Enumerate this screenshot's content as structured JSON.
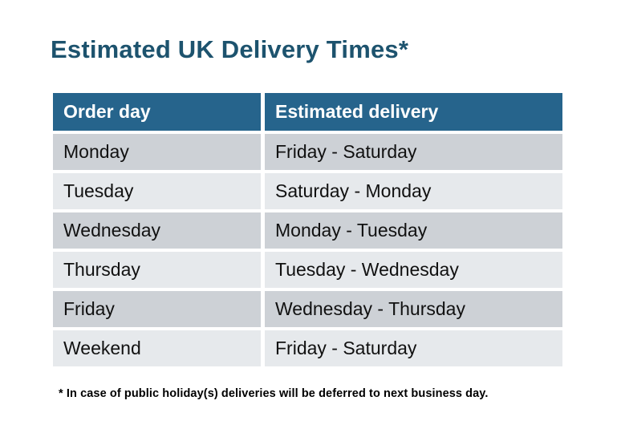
{
  "title": "Estimated UK Delivery Times*",
  "table": {
    "headers": {
      "order_day": "Order day",
      "estimated_delivery": "Estimated delivery"
    },
    "rows": [
      {
        "order_day": "Monday",
        "estimated_delivery": "Friday - Saturday"
      },
      {
        "order_day": "Tuesday",
        "estimated_delivery": "Saturday - Monday"
      },
      {
        "order_day": "Wednesday",
        "estimated_delivery": "Monday - Tuesday"
      },
      {
        "order_day": "Thursday",
        "estimated_delivery": "Tuesday - Wednesday"
      },
      {
        "order_day": "Friday",
        "estimated_delivery": "Wednesday - Thursday"
      },
      {
        "order_day": "Weekend",
        "estimated_delivery": "Friday - Saturday"
      }
    ]
  },
  "footnote": "* In case of public holiday(s) deliveries will be deferred to next business day.",
  "colors": {
    "title_text": "#1d536e",
    "header_bg": "#26648c",
    "header_text": "#ffffff",
    "row_dark": "#cdd1d6",
    "row_light": "#e6e9ec",
    "body_text": "#111111",
    "page_bg": "#ffffff"
  },
  "chart_data": {
    "type": "table",
    "title": "Estimated UK Delivery Times*",
    "columns": [
      "Order day",
      "Estimated delivery"
    ],
    "rows": [
      [
        "Monday",
        "Friday - Saturday"
      ],
      [
        "Tuesday",
        "Saturday - Monday"
      ],
      [
        "Wednesday",
        "Monday - Tuesday"
      ],
      [
        "Thursday",
        "Tuesday - Wednesday"
      ],
      [
        "Friday",
        "Wednesday - Thursday"
      ],
      [
        "Weekend",
        "Friday - Saturday"
      ]
    ],
    "footnote": "* In case of public holiday(s) deliveries will be deferred to next business day.",
    "layout_hints": {
      "header_style": "dark-teal background, white bold text",
      "row_striping": "alternating grey (dark, light) starting dark",
      "cell_gaps": "white gaps between all cells"
    }
  }
}
